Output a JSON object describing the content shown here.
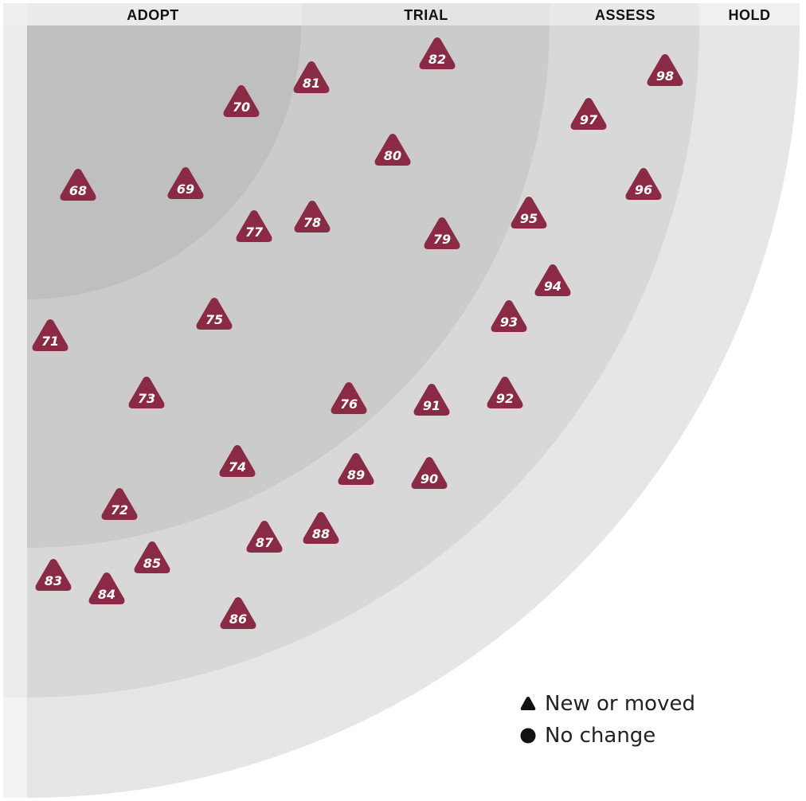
{
  "rings": [
    {
      "name": "ADOPT"
    },
    {
      "name": "TRIAL"
    },
    {
      "name": "ASSESS"
    },
    {
      "name": "HOLD"
    }
  ],
  "colors": {
    "blip": "#8a2a44",
    "adopt": "#bfbfbf",
    "trial": "#cbcbcb",
    "assess": "#d8d8d8",
    "hold": "#e6e6e6",
    "header": "#efefef"
  },
  "blips": [
    {
      "id": "68",
      "shape": "triangle"
    },
    {
      "id": "69",
      "shape": "triangle"
    },
    {
      "id": "70",
      "shape": "triangle"
    },
    {
      "id": "71",
      "shape": "triangle"
    },
    {
      "id": "72",
      "shape": "triangle"
    },
    {
      "id": "73",
      "shape": "triangle"
    },
    {
      "id": "74",
      "shape": "triangle"
    },
    {
      "id": "75",
      "shape": "triangle"
    },
    {
      "id": "76",
      "shape": "triangle"
    },
    {
      "id": "77",
      "shape": "triangle"
    },
    {
      "id": "78",
      "shape": "triangle"
    },
    {
      "id": "79",
      "shape": "triangle"
    },
    {
      "id": "80",
      "shape": "triangle"
    },
    {
      "id": "81",
      "shape": "triangle"
    },
    {
      "id": "82",
      "shape": "triangle"
    },
    {
      "id": "83",
      "shape": "triangle"
    },
    {
      "id": "84",
      "shape": "triangle"
    },
    {
      "id": "85",
      "shape": "triangle"
    },
    {
      "id": "86",
      "shape": "triangle"
    },
    {
      "id": "87",
      "shape": "triangle"
    },
    {
      "id": "88",
      "shape": "triangle"
    },
    {
      "id": "89",
      "shape": "triangle"
    },
    {
      "id": "90",
      "shape": "triangle"
    },
    {
      "id": "91",
      "shape": "triangle"
    },
    {
      "id": "92",
      "shape": "triangle"
    },
    {
      "id": "93",
      "shape": "triangle"
    },
    {
      "id": "94",
      "shape": "triangle"
    },
    {
      "id": "95",
      "shape": "triangle"
    },
    {
      "id": "96",
      "shape": "triangle"
    },
    {
      "id": "97",
      "shape": "triangle"
    },
    {
      "id": "98",
      "shape": "triangle"
    }
  ],
  "legend": {
    "new_or_moved": "New or moved",
    "no_change": "No change",
    "new_icon": "triangle-icon",
    "unchanged_icon": "circle-icon"
  }
}
